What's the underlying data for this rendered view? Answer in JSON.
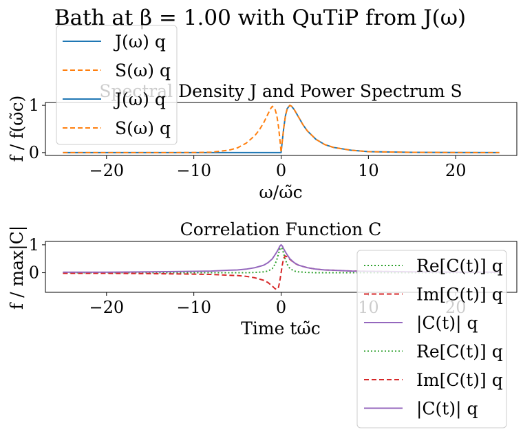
{
  "figure": {
    "title": "Bath at β = 1.00 with QuTiP from J(ω)"
  },
  "colors": {
    "J": "#1f77b4",
    "S": "#ff7f0e",
    "Re": "#2ca02c",
    "Im": "#d62728",
    "Abs": "#9467bd",
    "axis": "#000000",
    "legend_border": "#cccccc"
  },
  "chart_data": [
    {
      "type": "line",
      "title": "Spectral Density J and Power Spectrum S",
      "xlabel": "ω/ω̃c",
      "ylabel": "f / f(ω̃c)",
      "xlim": [
        -27,
        27
      ],
      "ylim": [
        -0.06,
        1.06
      ],
      "xticks": [
        -20,
        -10,
        0,
        10,
        20
      ],
      "xticklabels": [
        "−20",
        "−10",
        "0",
        "10",
        "20"
      ],
      "yticks": [
        0,
        1
      ],
      "yticklabels": [
        "0",
        "1"
      ],
      "grid": false,
      "legend_position": "top-left",
      "legend": [
        "J(ω) q",
        "S(ω) q",
        "J(ω) q",
        "S(ω) q"
      ],
      "x": [
        -25,
        -10,
        -8,
        -6,
        -5,
        -4,
        -3,
        -2.5,
        -2,
        -1.5,
        -1.2,
        -1,
        -0.7,
        -0.5,
        -0.3,
        -0.1,
        0,
        0.1,
        0.3,
        0.5,
        0.7,
        1,
        1.2,
        1.5,
        2,
        2.5,
        3,
        4,
        5,
        6,
        8,
        10,
        15,
        20,
        25
      ],
      "series": [
        {
          "name": "J(ω) q",
          "style": "solid",
          "values": [
            0,
            0,
            0,
            0,
            0,
            0,
            0,
            0,
            0,
            0,
            0,
            0,
            0,
            0,
            0,
            0,
            0,
            0.19,
            0.52,
            0.78,
            0.93,
            1.0,
            0.98,
            0.91,
            0.75,
            0.59,
            0.46,
            0.28,
            0.17,
            0.11,
            0.05,
            0.02,
            0.005,
            0.001,
            0
          ]
        },
        {
          "name": "S(ω) q",
          "style": "dashed",
          "values": [
            0,
            0.001,
            0.01,
            0.05,
            0.1,
            0.2,
            0.36,
            0.48,
            0.63,
            0.82,
            0.93,
            0.98,
            0.92,
            0.79,
            0.55,
            0.21,
            0,
            0.19,
            0.52,
            0.78,
            0.93,
            1.0,
            0.98,
            0.91,
            0.75,
            0.59,
            0.46,
            0.28,
            0.17,
            0.11,
            0.05,
            0.02,
            0.005,
            0.001,
            0
          ]
        }
      ]
    },
    {
      "type": "line",
      "title": "Correlation Function C",
      "xlabel": "Time tω̃c",
      "ylabel": "f / max|C|",
      "xlim": [
        -27,
        27
      ],
      "ylim": [
        -0.7,
        1.12
      ],
      "xticks": [
        -20,
        -10,
        0,
        10,
        20
      ],
      "xticklabels": [
        "−20",
        "−10",
        "0",
        "10",
        "20"
      ],
      "yticks": [
        0,
        1
      ],
      "yticklabels": [
        "0",
        "1"
      ],
      "grid": false,
      "legend_position": "lower-right",
      "legend": [
        "Re[C(t)] q",
        "Im[C(t)] q",
        "|C(t)| q",
        "Re[C(t)] q",
        "Im[C(t)] q",
        "|C(t)| q"
      ],
      "x": [
        -25,
        -20,
        -15,
        -10,
        -8,
        -6,
        -5,
        -4,
        -3,
        -2,
        -1.5,
        -1,
        -0.7,
        -0.5,
        -0.3,
        -0.15,
        0,
        0.15,
        0.3,
        0.5,
        0.7,
        1,
        1.5,
        2,
        3,
        4,
        5,
        6,
        8,
        10,
        15,
        20,
        25
      ],
      "series": [
        {
          "name": "Re[C(t)] q",
          "style": "dotted",
          "values": [
            0,
            0,
            0,
            0,
            0,
            0,
            0,
            0,
            0.01,
            0.03,
            0.06,
            0.15,
            0.3,
            0.46,
            0.68,
            0.84,
            0.9,
            0.84,
            0.68,
            0.46,
            0.3,
            0.15,
            0.06,
            0.03,
            0.01,
            0,
            0,
            0,
            0,
            0,
            0,
            0,
            0
          ]
        },
        {
          "name": "Im[C(t)] q",
          "style": "dashed",
          "values": [
            -0.02,
            -0.02,
            -0.03,
            -0.05,
            -0.06,
            -0.09,
            -0.1,
            -0.13,
            -0.18,
            -0.27,
            -0.35,
            -0.48,
            -0.57,
            -0.6,
            -0.52,
            -0.3,
            0,
            0.3,
            0.52,
            0.6,
            0.57,
            0.48,
            0.35,
            0.27,
            0.18,
            0.13,
            0.1,
            0.09,
            0.06,
            0.05,
            0.03,
            0.02,
            0.02
          ]
        },
        {
          "name": "|C(t)| q",
          "style": "solid",
          "values": [
            0.02,
            0.02,
            0.03,
            0.05,
            0.06,
            0.09,
            0.1,
            0.13,
            0.18,
            0.27,
            0.36,
            0.5,
            0.64,
            0.74,
            0.85,
            0.95,
            1.0,
            0.95,
            0.85,
            0.74,
            0.64,
            0.5,
            0.36,
            0.27,
            0.18,
            0.13,
            0.1,
            0.09,
            0.06,
            0.05,
            0.03,
            0.02,
            0.02
          ]
        }
      ]
    }
  ]
}
